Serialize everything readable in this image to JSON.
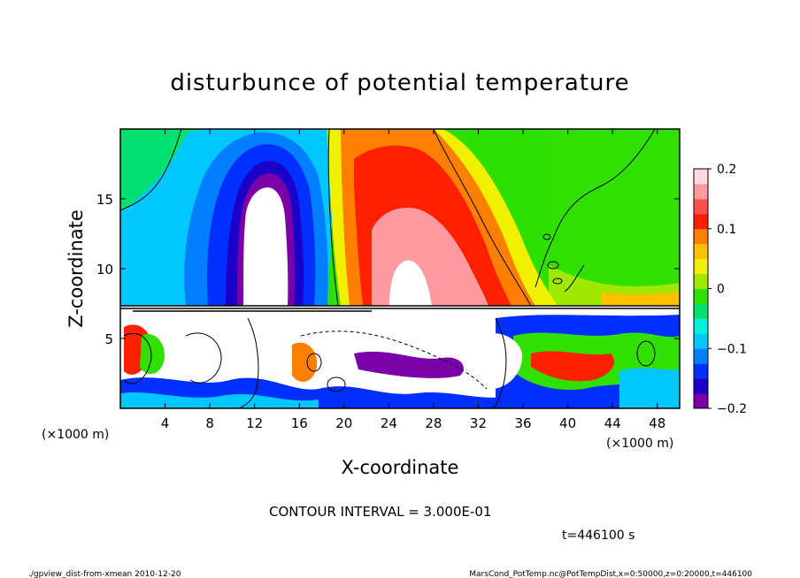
{
  "chart_data": {
    "type": "heatmap",
    "title": "disturbunce of potential temperature",
    "xlabel": "X-coordinate",
    "ylabel": "Z-coordinate",
    "x_unit_left": "(×1000 m)",
    "x_unit_right": "(×1000 m)",
    "xlim": [
      0,
      50
    ],
    "ylim": [
      0,
      20
    ],
    "xticks": [
      4,
      8,
      12,
      16,
      20,
      24,
      28,
      32,
      36,
      40,
      44,
      48
    ],
    "yticks": [
      5,
      10,
      15
    ],
    "colorbar": {
      "range": [
        -0.2,
        0.2
      ],
      "tick_values": [
        0.2,
        0.1,
        0,
        -0.1,
        -0.2
      ],
      "tick_labels": [
        "0.2",
        "0.1",
        "0",
        "−0.1",
        "−0.2"
      ],
      "colors": [
        "#7a00a8",
        "#1a00c8",
        "#0030ff",
        "#0080ff",
        "#00c8ff",
        "#00f0e0",
        "#00e070",
        "#30e000",
        "#a0e800",
        "#f0f000",
        "#ffc000",
        "#ff8000",
        "#ff2000",
        "#ff5050",
        "#ff9aa0",
        "#ffd8dc"
      ]
    },
    "contour_interval_text": "CONTOUR INTERVAL = 3.000E-01",
    "time_text": "t=446100 s",
    "features": [
      {
        "name": "cold plume",
        "x": 13.5,
        "z_top": 19,
        "value": -0.2
      },
      {
        "name": "warm plume",
        "x": 26,
        "z_top": 19,
        "value": 0.2
      },
      {
        "name": "turbulent mixed layer",
        "z_top": 7.3
      }
    ]
  },
  "footer": {
    "left": "./gpview_dist-from-xmean  2010-12-20",
    "right": "MarsCond_PotTemp.nc@PotTempDist,x=0:50000,z=0:20000,t=446100"
  }
}
